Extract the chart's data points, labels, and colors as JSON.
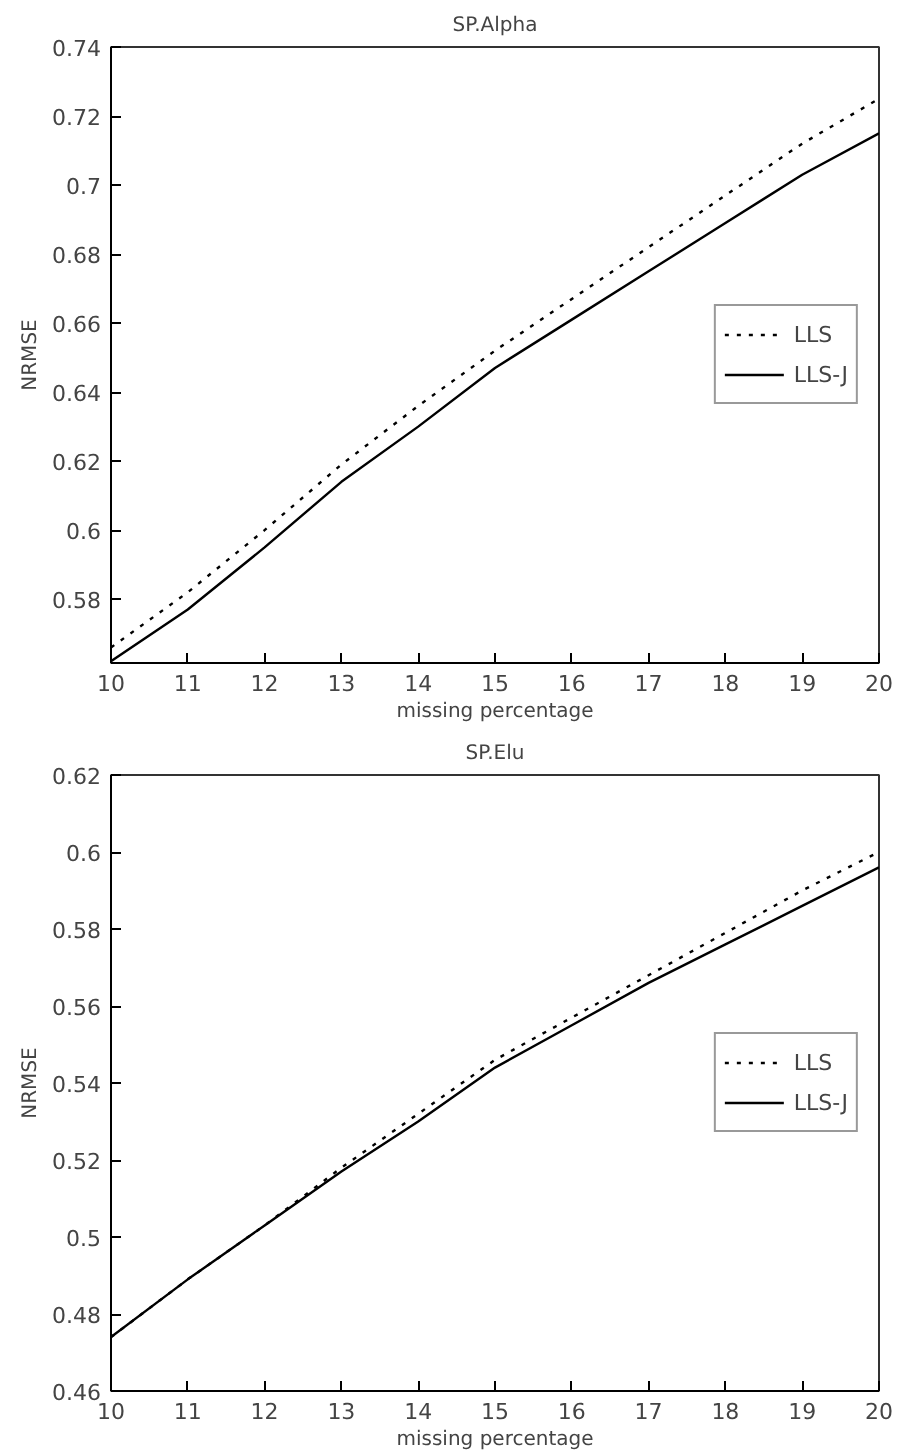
{
  "chart_data": [
    {
      "type": "line",
      "title": "SP.Alpha",
      "xlabel": "missing percentage",
      "ylabel": "NRMSE",
      "x": [
        10,
        11,
        12,
        13,
        14,
        15,
        16,
        17,
        18,
        19,
        20
      ],
      "xlim": [
        10,
        20
      ],
      "xticks": [
        10,
        11,
        12,
        13,
        14,
        15,
        16,
        17,
        18,
        19,
        20
      ],
      "ylim": [
        0.5615,
        0.74
      ],
      "yticks": [
        0.58,
        0.6,
        0.62,
        0.64,
        0.66,
        0.68,
        0.7,
        0.72,
        0.74
      ],
      "grid": false,
      "legend": "right",
      "marker": "none",
      "series": [
        {
          "name": "LLS",
          "color": "#000000",
          "line_style": "dotted",
          "values": [
            0.566,
            0.582,
            0.6,
            0.619,
            0.636,
            0.652,
            0.667,
            0.682,
            0.697,
            0.712,
            0.725
          ]
        },
        {
          "name": "LLS-J",
          "color": "#000000",
          "line_style": "solid",
          "values": [
            0.562,
            0.577,
            0.595,
            0.614,
            0.63,
            0.647,
            0.661,
            0.675,
            0.689,
            0.703,
            0.715
          ]
        }
      ]
    },
    {
      "type": "line",
      "title": "SP.Elu",
      "xlabel": "missing percentage",
      "ylabel": "NRMSE",
      "x": [
        10,
        11,
        12,
        13,
        14,
        15,
        16,
        17,
        18,
        19,
        20
      ],
      "xlim": [
        10,
        20
      ],
      "xticks": [
        10,
        11,
        12,
        13,
        14,
        15,
        16,
        17,
        18,
        19,
        20
      ],
      "ylim": [
        0.46,
        0.62
      ],
      "yticks": [
        0.46,
        0.48,
        0.5,
        0.52,
        0.54,
        0.56,
        0.58,
        0.6,
        0.62
      ],
      "grid": false,
      "legend": "right",
      "marker": "none",
      "series": [
        {
          "name": "LLS",
          "color": "#000000",
          "line_style": "dotted",
          "values": [
            0.474,
            0.489,
            0.503,
            0.518,
            0.532,
            0.546,
            0.557,
            0.568,
            0.579,
            0.59,
            0.6
          ]
        },
        {
          "name": "LLS-J",
          "color": "#000000",
          "line_style": "solid",
          "values": [
            0.474,
            0.489,
            0.503,
            0.517,
            0.53,
            0.544,
            0.555,
            0.566,
            0.576,
            0.586,
            0.596
          ]
        }
      ]
    }
  ]
}
